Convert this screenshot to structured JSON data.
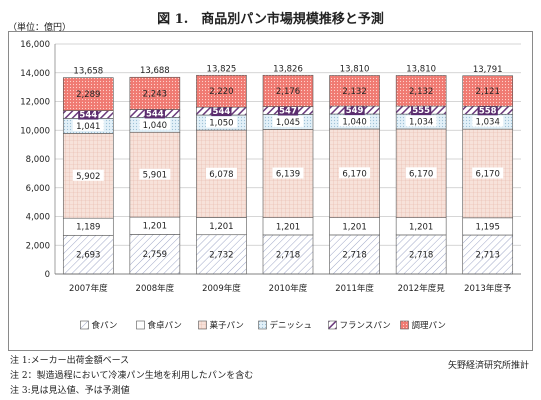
{
  "title": "図 1.　商品別パン市場規模推移と予測",
  "unit_label": "（単位：億円）",
  "notes": [
    "注 1:メーカー出荷金額ベース",
    "注 2：製造過程において冷凍パン生地を利用したパンを含む",
    "注 3:見は見込値、予は予測値"
  ],
  "source": "矢野経済研究所推計",
  "chart_data": {
    "type": "bar",
    "stacked": true,
    "categories": [
      "2007年度",
      "2008年度",
      "2009年度",
      "2010年度",
      "2011年度",
      "2012年度見",
      "2013年度予"
    ],
    "totals": [
      "13,658",
      "13,688",
      "13,825",
      "13,826",
      "13,810",
      "13,810",
      "13,791"
    ],
    "ylim": [
      0,
      16000
    ],
    "yticks": [
      "0",
      "2,000",
      "4,000",
      "6,000",
      "8,000",
      "10,000",
      "12,000",
      "14,000",
      "16,000"
    ],
    "legend_position": "bottom",
    "series": [
      {
        "name": "食パン",
        "color": "#ffffff",
        "pattern": "diag-thin",
        "values": [
          2693,
          2759,
          2732,
          2718,
          2718,
          2718,
          2713
        ],
        "labels": [
          "2,693",
          "2,759",
          "2,732",
          "2,718",
          "2,718",
          "2,718",
          "2,713"
        ]
      },
      {
        "name": "食卓パン",
        "color": "#ffffff",
        "pattern": "plain",
        "values": [
          1189,
          1201,
          1201,
          1201,
          1201,
          1201,
          1195
        ],
        "labels": [
          "1,189",
          "1,201",
          "1,201",
          "1,201",
          "1,201",
          "1,201",
          "1,195"
        ]
      },
      {
        "name": "菓子パン",
        "color": "#f6dcd4",
        "pattern": "grid",
        "values": [
          5902,
          5901,
          6078,
          6139,
          6170,
          6170,
          6170
        ],
        "labels": [
          "5,902",
          "5,901",
          "6,078",
          "6,139",
          "6,170",
          "6,170",
          "6,170"
        ]
      },
      {
        "name": "デニッシュ",
        "color": "#dcecf6",
        "pattern": "dots",
        "values": [
          1041,
          1040,
          1050,
          1045,
          1040,
          1034,
          1034
        ],
        "labels": [
          "1,041",
          "1,040",
          "1,050",
          "1,045",
          "1,040",
          "1,034",
          "1,034"
        ]
      },
      {
        "name": "フランスパン",
        "color": "#7b4a8c",
        "pattern": "diag-thick",
        "values": [
          544,
          544,
          544,
          547,
          549,
          555,
          558
        ],
        "labels": [
          "544",
          "544",
          "544",
          "547",
          "549",
          "555",
          "558"
        ]
      },
      {
        "name": "調理パン",
        "color": "#ee6b63",
        "pattern": "dots",
        "values": [
          2289,
          2243,
          2220,
          2176,
          2132,
          2132,
          2121
        ],
        "labels": [
          "2,289",
          "2,243",
          "2,220",
          "2,176",
          "2,132",
          "2,132",
          "2,121"
        ]
      }
    ]
  }
}
